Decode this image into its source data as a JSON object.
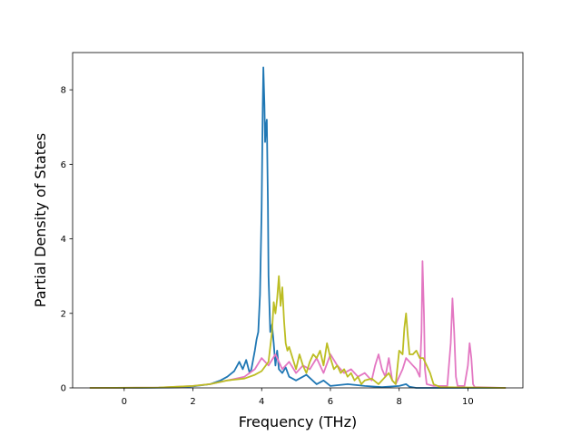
{
  "chart_data": {
    "type": "line",
    "xlabel": "Frequency (THz)",
    "ylabel": "Partial Density of States",
    "xlim": [
      -1.5,
      11.6
    ],
    "ylim": [
      0,
      9
    ],
    "x_ticks": [
      0,
      2,
      4,
      6,
      8,
      10
    ],
    "y_ticks": [
      0,
      2,
      4,
      6,
      8
    ],
    "x_tick_labels": [
      "0",
      "2",
      "4",
      "6",
      "8",
      "10"
    ],
    "y_tick_labels": [
      "0",
      "2",
      "4",
      "6",
      "8"
    ],
    "grid": false,
    "series": [
      {
        "color": "#1f77b4",
        "x": [
          -1.0,
          0.5,
          1.5,
          2.0,
          2.5,
          2.8,
          3.0,
          3.2,
          3.35,
          3.45,
          3.55,
          3.65,
          3.7,
          3.8,
          3.85,
          3.9,
          3.95,
          4.0,
          4.03,
          4.05,
          4.08,
          4.1,
          4.12,
          4.15,
          4.18,
          4.2,
          4.25,
          4.3,
          4.35,
          4.4,
          4.45,
          4.5,
          4.6,
          4.7,
          4.8,
          5.0,
          5.3,
          5.6,
          5.8,
          6.0,
          6.5,
          7.0,
          7.5,
          8.0,
          8.2,
          8.3,
          8.5,
          11.1
        ],
        "y": [
          0,
          0,
          0.01,
          0.04,
          0.1,
          0.2,
          0.3,
          0.45,
          0.7,
          0.5,
          0.75,
          0.4,
          0.5,
          1.0,
          1.3,
          1.5,
          2.5,
          4.8,
          7.5,
          8.6,
          7.6,
          6.6,
          7.0,
          7.2,
          5.0,
          3.0,
          1.5,
          1.7,
          1.2,
          0.6,
          1.0,
          0.5,
          0.4,
          0.55,
          0.3,
          0.2,
          0.35,
          0.1,
          0.2,
          0.05,
          0.1,
          0.05,
          0.02,
          0.05,
          0.1,
          0.03,
          0,
          0
        ]
      },
      {
        "color": "#e377c2",
        "x": [
          -1.0,
          1.0,
          2.0,
          2.5,
          3.0,
          3.5,
          3.8,
          4.0,
          4.2,
          4.4,
          4.5,
          4.6,
          4.8,
          5.0,
          5.2,
          5.4,
          5.6,
          5.8,
          6.0,
          6.2,
          6.4,
          6.6,
          6.8,
          7.0,
          7.2,
          7.3,
          7.4,
          7.5,
          7.6,
          7.7,
          7.8,
          7.9,
          8.0,
          8.1,
          8.2,
          8.3,
          8.4,
          8.5,
          8.6,
          8.65,
          8.68,
          8.72,
          8.75,
          8.8,
          9.0,
          9.4,
          9.5,
          9.55,
          9.6,
          9.65,
          9.7,
          9.9,
          10.0,
          10.05,
          10.1,
          10.15,
          10.2,
          11.1
        ],
        "y": [
          0,
          0.01,
          0.05,
          0.1,
          0.2,
          0.3,
          0.5,
          0.8,
          0.6,
          0.9,
          0.7,
          0.5,
          0.7,
          0.4,
          0.6,
          0.5,
          0.8,
          0.4,
          0.9,
          0.6,
          0.4,
          0.5,
          0.3,
          0.4,
          0.2,
          0.6,
          0.9,
          0.5,
          0.3,
          0.8,
          0.2,
          0.1,
          0.3,
          0.5,
          0.8,
          0.7,
          0.6,
          0.5,
          0.3,
          1.5,
          3.4,
          2.0,
          0.5,
          0.1,
          0.05,
          0.05,
          1.2,
          2.4,
          1.5,
          0.3,
          0.05,
          0.05,
          0.6,
          1.2,
          0.8,
          0.1,
          0.02,
          0
        ]
      },
      {
        "color": "#bcbd22",
        "x": [
          -1.0,
          1.0,
          2.0,
          2.5,
          3.0,
          3.5,
          3.8,
          4.0,
          4.2,
          4.3,
          4.35,
          4.4,
          4.45,
          4.5,
          4.55,
          4.6,
          4.65,
          4.7,
          4.75,
          4.8,
          4.9,
          5.0,
          5.1,
          5.2,
          5.3,
          5.4,
          5.5,
          5.6,
          5.7,
          5.8,
          5.9,
          6.0,
          6.1,
          6.2,
          6.3,
          6.4,
          6.5,
          6.6,
          6.7,
          6.8,
          6.9,
          7.0,
          7.2,
          7.4,
          7.6,
          7.7,
          7.8,
          7.9,
          8.0,
          8.1,
          8.15,
          8.2,
          8.25,
          8.3,
          8.4,
          8.5,
          8.6,
          8.7,
          8.8,
          8.9,
          9.0,
          9.2,
          11.1
        ],
        "y": [
          0,
          0.01,
          0.05,
          0.1,
          0.2,
          0.25,
          0.35,
          0.45,
          0.7,
          1.5,
          2.3,
          2.0,
          2.4,
          3.0,
          2.2,
          2.7,
          1.8,
          1.2,
          1.0,
          1.1,
          0.8,
          0.5,
          0.9,
          0.6,
          0.4,
          0.7,
          0.9,
          0.8,
          1.0,
          0.6,
          1.2,
          0.8,
          0.5,
          0.6,
          0.4,
          0.5,
          0.3,
          0.4,
          0.2,
          0.3,
          0.1,
          0.2,
          0.25,
          0.1,
          0.3,
          0.4,
          0.2,
          0.1,
          1.0,
          0.9,
          1.6,
          2.0,
          1.4,
          0.9,
          0.9,
          1.0,
          0.8,
          0.8,
          0.6,
          0.4,
          0.1,
          0.02,
          0
        ]
      }
    ]
  }
}
